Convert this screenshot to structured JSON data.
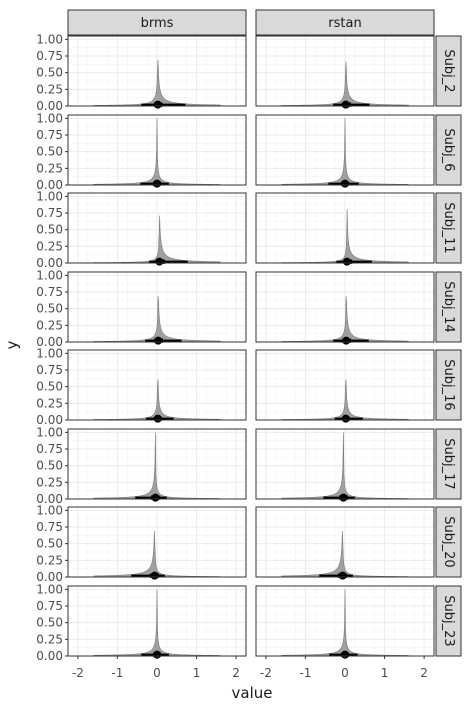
{
  "chart_data": {
    "type": "area",
    "description_style": "faceted half-eye density plots (posterior density with point + interval summary)",
    "columns": [
      "brms",
      "rstan"
    ],
    "rows": [
      "Subj_2",
      "Subj_6",
      "Subj_11",
      "Subj_14",
      "Subj_16",
      "Subj_17",
      "Subj_20",
      "Subj_23"
    ],
    "xlabel": "value",
    "ylabel": "y",
    "xlim": [
      -2.25,
      2.25
    ],
    "ylim": [
      0,
      1.05
    ],
    "xticks": [
      -2,
      -1,
      0,
      1,
      2
    ],
    "xtick_labels": [
      "-2",
      "-1",
      "0",
      "1",
      "2"
    ],
    "yticks": [
      0,
      0.25,
      0.5,
      0.75,
      1
    ],
    "ytick_labels": [
      "0.00",
      "0.25",
      "0.50",
      "0.75",
      "1.00"
    ],
    "grid": true,
    "density_color": "#a0a0a0",
    "interval_color": "#000000",
    "facets": [
      {
        "row": "Subj_2",
        "col": "brms",
        "median": 0.02,
        "q25": -0.08,
        "q75": 0.14,
        "q05": -0.4,
        "q95": 0.72,
        "left_tail": 0.5,
        "right_tail": 0.9
      },
      {
        "row": "Subj_2",
        "col": "rstan",
        "median": 0.02,
        "q25": -0.08,
        "q75": 0.15,
        "q05": -0.3,
        "q95": 0.62,
        "left_tail": 0.45,
        "right_tail": 0.8
      },
      {
        "row": "Subj_6",
        "col": "brms",
        "median": 0.0,
        "q25": -0.1,
        "q75": 0.1,
        "q05": -0.42,
        "q95": 0.3,
        "left_tail": 0.6,
        "right_tail": 0.45
      },
      {
        "row": "Subj_6",
        "col": "rstan",
        "median": 0.0,
        "q25": -0.1,
        "q75": 0.1,
        "q05": -0.42,
        "q95": 0.35,
        "left_tail": 0.6,
        "right_tail": 0.5
      },
      {
        "row": "Subj_11",
        "col": "brms",
        "median": 0.06,
        "q25": -0.03,
        "q75": 0.2,
        "q05": -0.2,
        "q95": 0.78,
        "left_tail": 0.3,
        "right_tail": 1.0
      },
      {
        "row": "Subj_11",
        "col": "rstan",
        "median": 0.05,
        "q25": -0.04,
        "q75": 0.18,
        "q05": -0.22,
        "q95": 0.68,
        "left_tail": 0.3,
        "right_tail": 0.9
      },
      {
        "row": "Subj_14",
        "col": "brms",
        "median": 0.03,
        "q25": -0.07,
        "q75": 0.15,
        "q05": -0.3,
        "q95": 0.62,
        "left_tail": 0.45,
        "right_tail": 0.85
      },
      {
        "row": "Subj_14",
        "col": "rstan",
        "median": 0.03,
        "q25": -0.07,
        "q75": 0.15,
        "q05": -0.3,
        "q95": 0.6,
        "left_tail": 0.45,
        "right_tail": 0.8
      },
      {
        "row": "Subj_16",
        "col": "brms",
        "median": 0.02,
        "q25": -0.07,
        "q75": 0.12,
        "q05": -0.28,
        "q95": 0.42,
        "left_tail": 0.4,
        "right_tail": 0.6
      },
      {
        "row": "Subj_16",
        "col": "rstan",
        "median": 0.02,
        "q25": -0.07,
        "q75": 0.12,
        "q05": -0.26,
        "q95": 0.45,
        "left_tail": 0.4,
        "right_tail": 0.6
      },
      {
        "row": "Subj_17",
        "col": "brms",
        "median": -0.04,
        "q25": -0.15,
        "q75": 0.07,
        "q05": -0.55,
        "q95": 0.25,
        "left_tail": 0.75,
        "right_tail": 0.4
      },
      {
        "row": "Subj_17",
        "col": "rstan",
        "median": -0.04,
        "q25": -0.15,
        "q75": 0.07,
        "q05": -0.55,
        "q95": 0.25,
        "left_tail": 0.75,
        "right_tail": 0.4
      },
      {
        "row": "Subj_20",
        "col": "brms",
        "median": -0.06,
        "q25": -0.18,
        "q75": 0.05,
        "q05": -0.65,
        "q95": 0.2,
        "left_tail": 0.9,
        "right_tail": 0.35
      },
      {
        "row": "Subj_20",
        "col": "rstan",
        "median": -0.06,
        "q25": -0.18,
        "q75": 0.05,
        "q05": -0.65,
        "q95": 0.2,
        "left_tail": 0.9,
        "right_tail": 0.35
      },
      {
        "row": "Subj_23",
        "col": "brms",
        "median": 0.0,
        "q25": -0.1,
        "q75": 0.1,
        "q05": -0.4,
        "q95": 0.3,
        "left_tail": 0.6,
        "right_tail": 0.45
      },
      {
        "row": "Subj_23",
        "col": "rstan",
        "median": 0.0,
        "q25": -0.1,
        "q75": 0.1,
        "q05": -0.4,
        "q95": 0.32,
        "left_tail": 0.6,
        "right_tail": 0.45
      }
    ]
  }
}
